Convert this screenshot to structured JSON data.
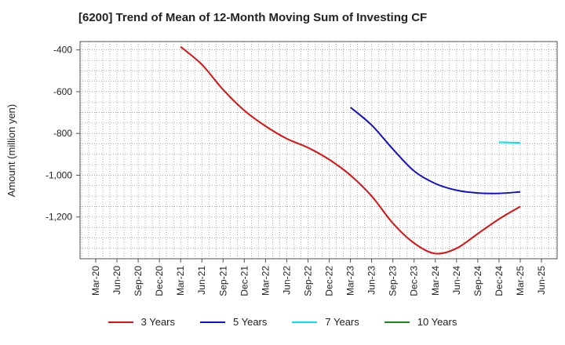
{
  "chart_data": {
    "type": "line",
    "title": "[6200]  Trend of Mean of 12-Month Moving Sum of Investing CF",
    "xlabel": "",
    "ylabel": "Amount (million yen)",
    "ylim": [
      -1400,
      -360
    ],
    "yticks": [
      -400,
      -600,
      -800,
      -1000,
      -1200
    ],
    "ytick_labels": [
      "-400",
      "-600",
      "-800",
      "-1,000",
      "-1,200"
    ],
    "categories": [
      "Mar-20",
      "Jun-20",
      "Sep-20",
      "Dec-20",
      "Mar-21",
      "Jun-21",
      "Sep-21",
      "Dec-21",
      "Mar-22",
      "Jun-22",
      "Sep-22",
      "Dec-22",
      "Mar-23",
      "Jun-23",
      "Sep-23",
      "Dec-23",
      "Mar-24",
      "Jun-24",
      "Sep-24",
      "Dec-24",
      "Mar-25",
      "Jun-25"
    ],
    "grid": true,
    "legend_position": "bottom",
    "series": [
      {
        "name": "3 Years",
        "color": "#dd1111",
        "values": [
          null,
          null,
          null,
          null,
          -385,
          -470,
          -590,
          -690,
          -765,
          -825,
          -868,
          -925,
          -1000,
          -1100,
          -1230,
          -1325,
          -1375,
          -1350,
          -1280,
          -1210,
          -1150,
          null
        ]
      },
      {
        "name": "5 Years",
        "color": "#1111cc",
        "values": [
          null,
          null,
          null,
          null,
          null,
          null,
          null,
          null,
          null,
          null,
          null,
          null,
          -675,
          -760,
          -875,
          -980,
          -1040,
          -1072,
          -1085,
          -1087,
          -1080,
          null
        ]
      },
      {
        "name": "7 Years",
        "color": "#00e5ee",
        "values": [
          null,
          null,
          null,
          null,
          null,
          null,
          null,
          null,
          null,
          null,
          null,
          null,
          null,
          null,
          null,
          null,
          null,
          null,
          null,
          -842,
          -845,
          null
        ]
      },
      {
        "name": "10 Years",
        "color": "#1a8a1a",
        "values": [
          null,
          null,
          null,
          null,
          null,
          null,
          null,
          null,
          null,
          null,
          null,
          null,
          null,
          null,
          null,
          null,
          null,
          null,
          null,
          null,
          null,
          null
        ]
      }
    ]
  }
}
